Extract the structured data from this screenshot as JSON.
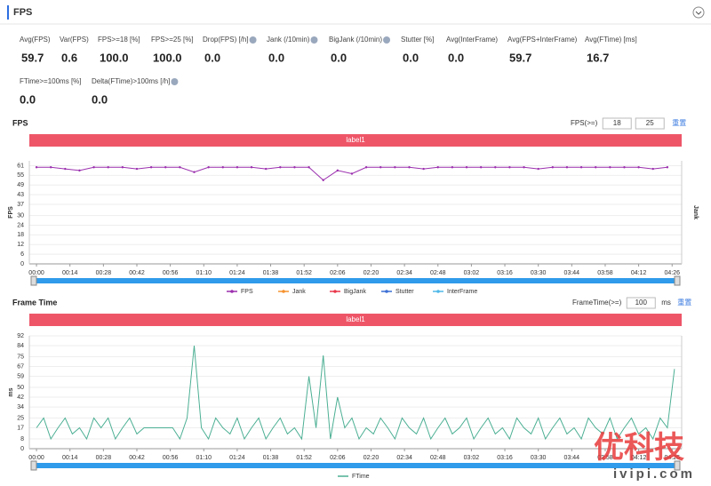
{
  "header": {
    "title": "FPS"
  },
  "stats": [
    {
      "label": "Avg(FPS)",
      "value": "59.7"
    },
    {
      "label": "Var(FPS)",
      "value": "0.6"
    },
    {
      "label": "FPS>=18 [%]",
      "value": "100.0"
    },
    {
      "label": "FPS>=25 [%]",
      "value": "100.0"
    },
    {
      "label": "Drop(FPS) [/h]",
      "value": "0.0"
    },
    {
      "label": "Jank (/10min)",
      "value": "0.0"
    },
    {
      "label": "BigJank (/10min)",
      "value": "0.0"
    },
    {
      "label": "Stutter [%]",
      "value": "0.0"
    },
    {
      "label": "Avg(InterFrame)",
      "value": "0.0"
    },
    {
      "label": "Avg(FPS+InterFrame)",
      "value": "59.7"
    },
    {
      "label": "Avg(FTime) [ms]",
      "value": "16.7"
    },
    {
      "label": "FTime>=100ms [%]",
      "value": "0.0"
    },
    {
      "label": "Delta(FTime)>100ms [/h]",
      "value": "0.0"
    }
  ],
  "controls": [
    {
      "label": "FPS(>=)",
      "inputs": [
        "18",
        "25"
      ],
      "reset": "重置"
    },
    {
      "label": "FrameTime(>=)",
      "inputs": [
        "100"
      ],
      "unit": "ms",
      "reset": "重置"
    }
  ],
  "watermark": {
    "brand": "优科技",
    "site": "ivipi.com"
  },
  "chart_data": [
    {
      "type": "line",
      "title": "FPS",
      "band_label": "label1",
      "y_label": "FPS",
      "y2_label": "Jank",
      "markers": true,
      "xlim": [
        -3,
        270
      ],
      "ylim": [
        0,
        64
      ],
      "xticks": [
        {
          "value": 0,
          "label": "00:00"
        },
        {
          "value": 14,
          "label": "00:14"
        },
        {
          "value": 28,
          "label": "00:28"
        },
        {
          "value": 42,
          "label": "00:42"
        },
        {
          "value": 56,
          "label": "00:56"
        },
        {
          "value": 70,
          "label": "01:10"
        },
        {
          "value": 84,
          "label": "01:24"
        },
        {
          "value": 98,
          "label": "01:38"
        },
        {
          "value": 112,
          "label": "01:52"
        },
        {
          "value": 126,
          "label": "02:06"
        },
        {
          "value": 140,
          "label": "02:20"
        },
        {
          "value": 154,
          "label": "02:34"
        },
        {
          "value": 168,
          "label": "02:48"
        },
        {
          "value": 182,
          "label": "03:02"
        },
        {
          "value": 196,
          "label": "03:16"
        },
        {
          "value": 210,
          "label": "03:30"
        },
        {
          "value": 224,
          "label": "03:44"
        },
        {
          "value": 238,
          "label": "03:58"
        },
        {
          "value": 252,
          "label": "04:12"
        },
        {
          "value": 266,
          "label": "04:26"
        }
      ],
      "yticks": [
        0,
        6,
        12,
        18,
        24,
        30,
        37,
        43,
        49,
        55,
        61
      ],
      "x": [
        0,
        6,
        12,
        18,
        24,
        30,
        36,
        42,
        48,
        54,
        60,
        66,
        72,
        78,
        84,
        90,
        96,
        102,
        108,
        114,
        120,
        126,
        132,
        138,
        144,
        150,
        156,
        162,
        168,
        174,
        180,
        186,
        192,
        198,
        204,
        210,
        216,
        222,
        228,
        234,
        240,
        246,
        252,
        258,
        264
      ],
      "series": [
        {
          "name": "FPS",
          "color": "#9b2fae",
          "values": [
            60,
            60,
            59,
            58,
            60,
            60,
            60,
            59,
            60,
            60,
            60,
            57,
            60,
            60,
            60,
            60,
            59,
            60,
            60,
            60,
            52,
            58,
            56,
            60,
            60,
            60,
            60,
            59,
            60,
            60,
            60,
            60,
            60,
            60,
            60,
            59,
            60,
            60,
            60,
            60,
            60,
            60,
            60,
            59,
            60
          ]
        },
        {
          "name": "Jank",
          "color": "#f5922f",
          "values": [
            null,
            null,
            null,
            null,
            null,
            null,
            null,
            null,
            null,
            null,
            null,
            null,
            null,
            null,
            null,
            null,
            null,
            null,
            null,
            null,
            null,
            null,
            null,
            null,
            null,
            null,
            null,
            null,
            null,
            null,
            null,
            null,
            null,
            null,
            null,
            null,
            null,
            null,
            null,
            null,
            null,
            null,
            null,
            null,
            null
          ]
        },
        {
          "name": "BigJank",
          "color": "#e8374a",
          "values": [
            null,
            null,
            null,
            null,
            null,
            null,
            null,
            null,
            null,
            null,
            null,
            null,
            null,
            null,
            null,
            null,
            null,
            null,
            null,
            null,
            null,
            null,
            null,
            null,
            null,
            null,
            null,
            null,
            null,
            null,
            null,
            null,
            null,
            null,
            null,
            null,
            null,
            null,
            null,
            null,
            null,
            null,
            null,
            null,
            null
          ]
        },
        {
          "name": "Stutter",
          "color": "#3b6fd4",
          "values": [
            null,
            null,
            null,
            null,
            null,
            null,
            null,
            null,
            null,
            null,
            null,
            null,
            null,
            null,
            null,
            null,
            null,
            null,
            null,
            null,
            null,
            null,
            null,
            null,
            null,
            null,
            null,
            null,
            null,
            null,
            null,
            null,
            null,
            null,
            null,
            null,
            null,
            null,
            null,
            null,
            null,
            null,
            null,
            null,
            null
          ]
        },
        {
          "name": "InterFrame",
          "color": "#4fb8e8",
          "values": [
            null,
            null,
            null,
            null,
            null,
            null,
            null,
            null,
            null,
            null,
            null,
            null,
            null,
            null,
            null,
            null,
            null,
            null,
            null,
            null,
            null,
            null,
            null,
            null,
            null,
            null,
            null,
            null,
            null,
            null,
            null,
            null,
            null,
            null,
            null,
            null,
            null,
            null,
            null,
            null,
            null,
            null,
            null,
            null,
            null
          ]
        }
      ]
    },
    {
      "type": "line",
      "title": "Frame Time",
      "band_label": "label1",
      "y_label": "ms",
      "markers": false,
      "xlim": [
        -3,
        270
      ],
      "ylim": [
        0,
        92
      ],
      "xticks": [
        {
          "value": 0,
          "label": "00:00"
        },
        {
          "value": 14,
          "label": "00:14"
        },
        {
          "value": 28,
          "label": "00:28"
        },
        {
          "value": 42,
          "label": "00:42"
        },
        {
          "value": 56,
          "label": "00:56"
        },
        {
          "value": 70,
          "label": "01:10"
        },
        {
          "value": 84,
          "label": "01:24"
        },
        {
          "value": 98,
          "label": "01:38"
        },
        {
          "value": 112,
          "label": "01:52"
        },
        {
          "value": 126,
          "label": "02:06"
        },
        {
          "value": 140,
          "label": "02:20"
        },
        {
          "value": 154,
          "label": "02:34"
        },
        {
          "value": 168,
          "label": "02:48"
        },
        {
          "value": 182,
          "label": "03:02"
        },
        {
          "value": 196,
          "label": "03:16"
        },
        {
          "value": 210,
          "label": "03:30"
        },
        {
          "value": 224,
          "label": "03:44"
        },
        {
          "value": 238,
          "label": "03:58"
        },
        {
          "value": 252,
          "label": "04:12"
        },
        {
          "value": 266,
          "label": "04:26"
        }
      ],
      "yticks": [
        0,
        8,
        17,
        25,
        34,
        42,
        50,
        59,
        67,
        75,
        84,
        92
      ],
      "x": [
        0,
        3,
        6,
        9,
        12,
        15,
        18,
        21,
        24,
        27,
        30,
        33,
        36,
        39,
        42,
        45,
        48,
        51,
        54,
        57,
        60,
        63,
        66,
        69,
        72,
        75,
        78,
        81,
        84,
        87,
        90,
        93,
        96,
        99,
        102,
        105,
        108,
        111,
        114,
        117,
        120,
        123,
        126,
        129,
        132,
        135,
        138,
        141,
        144,
        147,
        150,
        153,
        156,
        159,
        162,
        165,
        168,
        171,
        174,
        177,
        180,
        183,
        186,
        189,
        192,
        195,
        198,
        201,
        204,
        207,
        210,
        213,
        216,
        219,
        222,
        225,
        228,
        231,
        234,
        237,
        240,
        243,
        246,
        249,
        252,
        255,
        258,
        261,
        264,
        267
      ],
      "series": [
        {
          "name": "FTime",
          "color": "#4caf93",
          "values": [
            17,
            25,
            8,
            17,
            25,
            12,
            17,
            8,
            25,
            17,
            25,
            8,
            17,
            25,
            12,
            17,
            17,
            17,
            17,
            17,
            8,
            25,
            84,
            17,
            8,
            25,
            17,
            12,
            25,
            8,
            17,
            25,
            8,
            17,
            25,
            12,
            17,
            8,
            59,
            17,
            76,
            8,
            42,
            17,
            25,
            8,
            17,
            12,
            25,
            17,
            8,
            25,
            17,
            12,
            25,
            8,
            17,
            25,
            12,
            17,
            25,
            8,
            17,
            25,
            12,
            17,
            8,
            25,
            17,
            12,
            25,
            8,
            17,
            25,
            12,
            17,
            8,
            25,
            17,
            12,
            25,
            8,
            17,
            25,
            12,
            17,
            8,
            25,
            17,
            65
          ]
        }
      ]
    }
  ]
}
